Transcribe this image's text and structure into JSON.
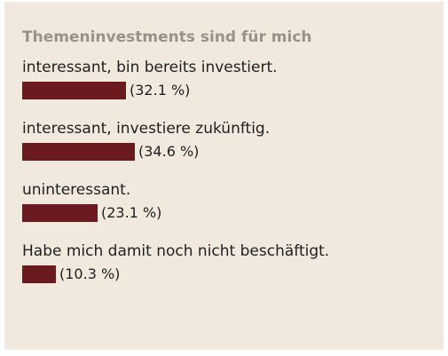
{
  "poll": {
    "title": "Themeninvestments sind für mich",
    "bar_color": "#6b1a1f",
    "options": [
      {
        "label": "interessant, bin bereits investiert.",
        "percent": 32.1,
        "percent_text": "(32.1 %)"
      },
      {
        "label": "interessant, investiere zukünftig.",
        "percent": 34.6,
        "percent_text": "(34.6 %)"
      },
      {
        "label": "uninteressant.",
        "percent": 23.1,
        "percent_text": "(23.1 %)"
      },
      {
        "label": "Habe mich damit noch nicht beschäftigt.",
        "percent": 10.3,
        "percent_text": "(10.3 %)"
      }
    ]
  }
}
